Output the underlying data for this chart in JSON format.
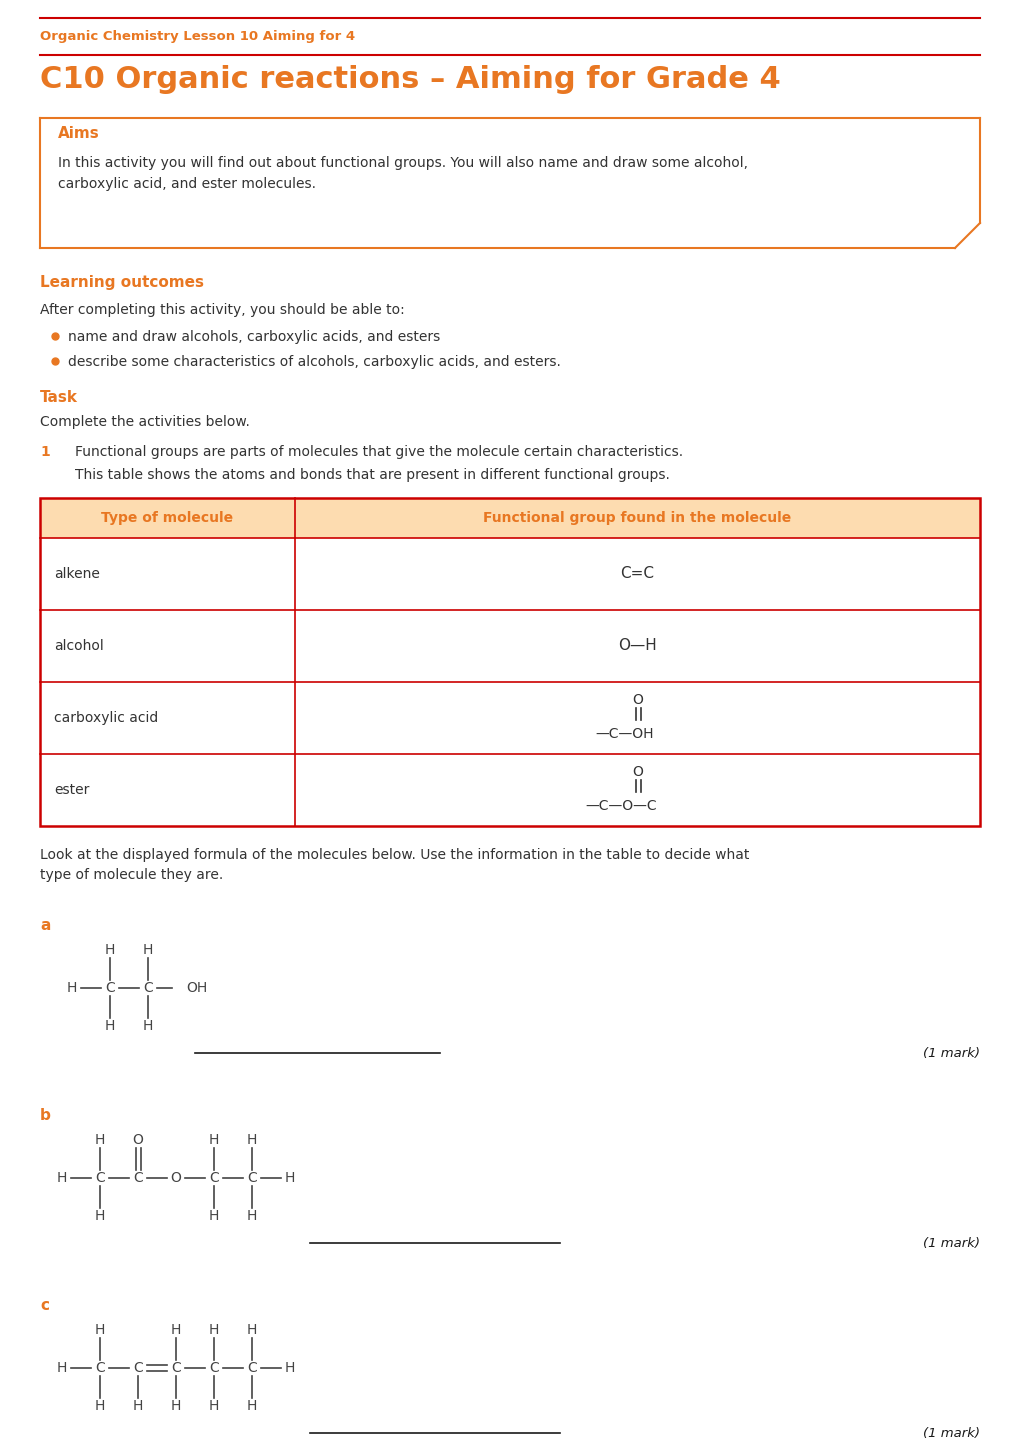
{
  "title_small": "Organic Chemistry Lesson 10 Aiming for 4",
  "title_large": "C10 Organic reactions – Aiming for Grade 4",
  "aims_title": "Aims",
  "aims_body": "In this activity you will find out about functional groups. You will also name and draw some alcohol,\ncarboxylic acid, and ester molecules.",
  "learning_title": "Learning outcomes",
  "learning_intro": "After completing this activity, you should be able to:",
  "learning_bullets": [
    "name and draw alcohols, carboxylic acids, and esters",
    "describe some characteristics of alcohols, carboxylic acids, and esters."
  ],
  "task_title": "Task",
  "task_body": "Complete the activities below.",
  "q1_num": "1",
  "q1_text1": "Functional groups are parts of molecules that give the molecule certain characteristics.",
  "q1_text2": "This table shows the atoms and bonds that are present in different functional groups.",
  "table_header": [
    "Type of molecule",
    "Functional group found in the molecule"
  ],
  "table_rows": [
    "alkene",
    "alcohol",
    "carboxylic acid",
    "ester"
  ],
  "look_text": "Look at the displayed formula of the molecules below. Use the information in the table to decide what\ntype of molecule they are.",
  "orange": "#E87722",
  "red_border": "#CC0000",
  "light_orange_bg": "#FDDCB0",
  "black": "#1a1a1a",
  "dark_gray": "#333333",
  "gray": "#555555",
  "background": "#FFFFFF"
}
